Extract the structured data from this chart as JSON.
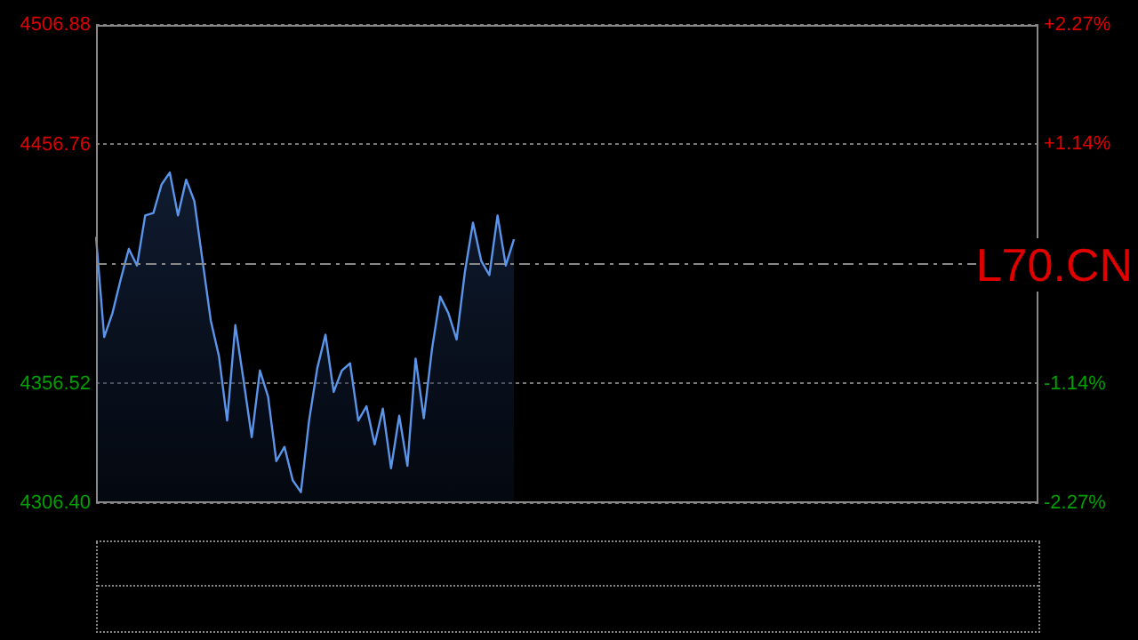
{
  "chart_data": {
    "type": "area",
    "categories": [
      null,
      null,
      null,
      null,
      null,
      null,
      null,
      null,
      null,
      null,
      null,
      null,
      null,
      null,
      null,
      null,
      null,
      null,
      null,
      null,
      null,
      null,
      null,
      null,
      null,
      null,
      null,
      null,
      null,
      null,
      null,
      null,
      null,
      null,
      null,
      null,
      null,
      null,
      null,
      null,
      null,
      null,
      null,
      null,
      null,
      null,
      null,
      null,
      null,
      null,
      null,
      null,
      null,
      null,
      null,
      null,
      null,
      null,
      null,
      null,
      null,
      null,
      null,
      null,
      null,
      null,
      null,
      null,
      null,
      null,
      null,
      null,
      null,
      null,
      null,
      null,
      null,
      null,
      null,
      null,
      null,
      null,
      null,
      null,
      null,
      null,
      null,
      null,
      null,
      null,
      null,
      null,
      null,
      null,
      null,
      null,
      null,
      null,
      null,
      null,
      null,
      null,
      null,
      null,
      null,
      null,
      null,
      null,
      null,
      null,
      null,
      null,
      null,
      null,
      null,
      null
    ],
    "series": [
      {
        "color": "#5b95ea",
        "values": [
          4418,
          4376,
          4386,
          4400,
          4413,
          4406,
          4427,
          4428,
          4440,
          4445,
          4427,
          4442,
          4433,
          4408,
          4383,
          4368,
          4341,
          4381,
          4358,
          4334,
          4362,
          4351,
          4324,
          4330,
          4316,
          4311,
          4341,
          4363,
          4377,
          4353,
          4362,
          4365,
          4341,
          4347,
          4331,
          4346,
          4321,
          4343,
          4322,
          4367,
          4342,
          4371,
          4393,
          4386,
          4375,
          4403,
          4424,
          4408,
          4402,
          4427,
          4406,
          4417,
          null,
          null,
          null,
          null,
          null,
          null,
          null,
          null,
          null,
          null,
          null,
          null,
          null,
          null,
          null,
          null,
          null,
          null,
          null,
          null,
          null,
          null,
          null,
          null,
          null,
          null,
          null,
          null,
          null,
          null,
          null,
          null,
          null,
          null,
          null,
          null,
          null,
          null,
          null,
          null,
          null,
          null,
          null,
          null,
          null,
          null,
          null,
          null,
          null,
          null,
          null,
          null,
          null,
          null,
          null,
          null,
          null,
          null,
          null,
          null,
          null,
          null,
          null,
          null
        ]
      }
    ],
    "ylim": [
      4306.4,
      4506.88
    ],
    "yticks": [
      {
        "value": 4306.4,
        "label": "4306.40"
      },
      {
        "value": 4356.52,
        "label": "4356.52"
      },
      {
        "value": 4456.76,
        "label": "4456.76"
      },
      {
        "value": 4506.88,
        "label": "4506.88"
      }
    ],
    "y2lim": [
      -2.27,
      2.27
    ],
    "y2ticks": [
      {
        "value": -2.27,
        "label": "-2.27%"
      },
      {
        "value": -1.14,
        "label": "-1.14%"
      },
      {
        "value": 1.14,
        "label": "+1.14%"
      },
      {
        "value": 2.27,
        "label": "+2.27%"
      }
    ],
    "ref_lines": [
      {
        "axis": "y",
        "value": 4406.64,
        "color": "#888888",
        "line_style": "dashdot"
      }
    ],
    "grid": "y",
    "annotations": [
      "L70.CN"
    ]
  }
}
